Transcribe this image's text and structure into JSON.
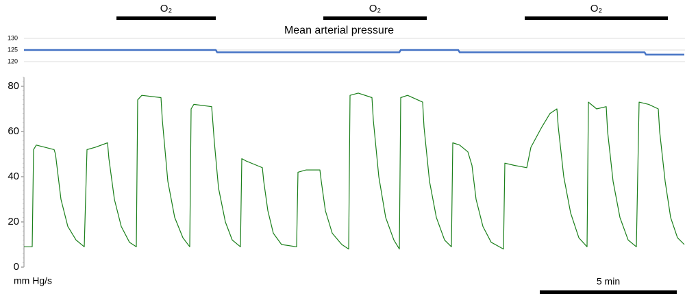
{
  "o2_periods": [
    {
      "label": "O₂",
      "start": 3.375,
      "end": 7.0
    },
    {
      "label": "O₂",
      "start": 10.925,
      "end": 14.7
    },
    {
      "label": "O₂",
      "start": 18.275,
      "end": 23.5
    }
  ],
  "scale_bar": {
    "label": "5 min",
    "length": 5
  },
  "chart_data": [
    {
      "type": "line",
      "title": "Mean arterial pressure",
      "x": [
        0,
        7.0,
        7.05,
        13.7,
        13.75,
        15.85,
        15.9,
        22.65,
        22.7,
        24.1
      ],
      "series": [
        {
          "color": "#4472c4",
          "values": [
            125,
            125,
            124,
            124,
            125,
            125,
            124,
            124,
            123,
            123
          ]
        }
      ],
      "xlim": [
        0,
        24.125
      ],
      "ylim": [
        120,
        130
      ],
      "yticks": [
        120,
        125,
        130
      ],
      "grid": true
    },
    {
      "type": "line",
      "y_label": "mm Hg/s",
      "x": [
        0,
        0.3,
        0.35,
        0.45,
        1.1,
        1.15,
        1.35,
        1.6,
        1.9,
        2.2,
        2.3,
        2.6,
        3.05,
        3.1,
        3.3,
        3.55,
        3.85,
        4.1,
        4.15,
        4.3,
        5.0,
        5.05,
        5.25,
        5.5,
        5.8,
        6.05,
        6.1,
        6.2,
        6.85,
        6.95,
        7.1,
        7.35,
        7.6,
        7.9,
        7.95,
        8.1,
        8.5,
        8.7,
        8.75,
        8.9,
        9.1,
        9.4,
        9.95,
        10.0,
        10.3,
        10.8,
        10.85,
        11.0,
        11.25,
        11.6,
        11.85,
        11.9,
        12.2,
        12.7,
        12.75,
        12.95,
        13.2,
        13.5,
        13.7,
        13.75,
        14.0,
        14.55,
        14.6,
        14.8,
        15.05,
        15.35,
        15.6,
        15.65,
        15.9,
        16.2,
        16.35,
        16.5,
        16.75,
        17.05,
        17.5,
        17.55,
        17.9,
        18.35,
        18.5,
        18.9,
        19.2,
        19.45,
        19.5,
        19.7,
        19.95,
        20.25,
        20.55,
        20.6,
        20.9,
        21.25,
        21.3,
        21.5,
        21.75,
        22.05,
        22.35,
        22.45,
        22.8,
        23.15,
        23.2,
        23.4,
        23.6,
        23.85,
        24.1
      ],
      "series": [
        {
          "color": "#1a7f1a",
          "values": [
            9,
            9,
            52,
            54,
            52,
            50,
            30,
            18,
            12,
            9,
            52,
            53,
            55,
            48,
            30,
            18,
            11,
            9,
            74,
            76,
            75,
            65,
            38,
            22,
            13,
            9,
            70,
            72,
            71,
            55,
            35,
            20,
            12,
            9,
            48,
            47,
            45,
            44,
            38,
            25,
            15,
            10,
            9,
            42,
            43,
            43,
            38,
            25,
            15,
            10,
            8,
            76,
            77,
            75,
            65,
            40,
            22,
            12,
            8,
            75,
            76,
            73,
            62,
            38,
            22,
            12,
            9,
            55,
            54,
            51,
            45,
            30,
            18,
            11,
            8,
            46,
            45,
            44,
            53,
            62,
            68,
            70,
            62,
            40,
            24,
            13,
            9,
            73,
            70,
            71,
            60,
            38,
            22,
            12,
            9,
            73,
            72,
            70,
            60,
            38,
            22,
            13,
            10
          ]
        }
      ],
      "xlim": [
        0,
        24.125
      ],
      "ylim": [
        0,
        84
      ],
      "yticks": [
        0,
        20,
        40,
        60,
        80
      ],
      "grid": false
    }
  ]
}
